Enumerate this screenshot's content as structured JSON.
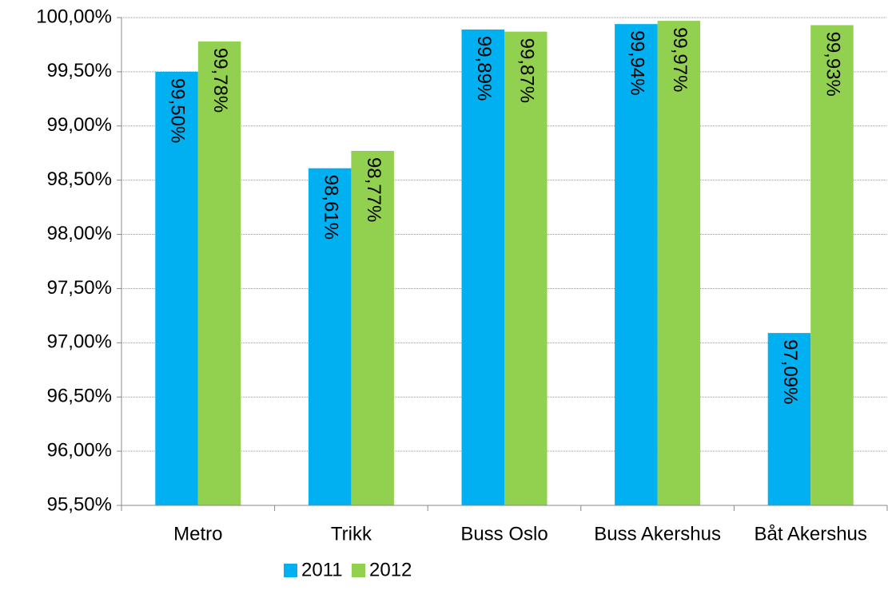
{
  "chart_data": {
    "type": "bar",
    "categories": [
      "Metro",
      "Trikk",
      "Buss Oslo",
      "Buss Akershus",
      "Båt Akershus"
    ],
    "series": [
      {
        "name": "2011",
        "color": "#00b0f0",
        "values": [
          99.5,
          98.61,
          99.89,
          99.94,
          97.09
        ],
        "value_labels": [
          "99,50%",
          "98,61%",
          "99,89%",
          "99,94%",
          "97,09%"
        ]
      },
      {
        "name": "2012",
        "color": "#92d050",
        "values": [
          99.78,
          98.77,
          99.87,
          99.97,
          99.93
        ],
        "value_labels": [
          "99,78%",
          "98,77%",
          "99,87%",
          "99,97%",
          "99,93%"
        ]
      }
    ],
    "ylim": [
      95.5,
      100
    ],
    "yticks": [
      {
        "value": 95.5,
        "label": "95,50%"
      },
      {
        "value": 96,
        "label": "96,00%"
      },
      {
        "value": 96.5,
        "label": "96,50%"
      },
      {
        "value": 97,
        "label": "97,00%"
      },
      {
        "value": 97.5,
        "label": "97,50%"
      },
      {
        "value": 98,
        "label": "98,00%"
      },
      {
        "value": 98.5,
        "label": "98,50%"
      },
      {
        "value": 99,
        "label": "99,00%"
      },
      {
        "value": 99.5,
        "label": "99,50%"
      },
      {
        "value": 100,
        "label": "100,00%"
      }
    ],
    "grid": true,
    "legend": "bottom"
  }
}
